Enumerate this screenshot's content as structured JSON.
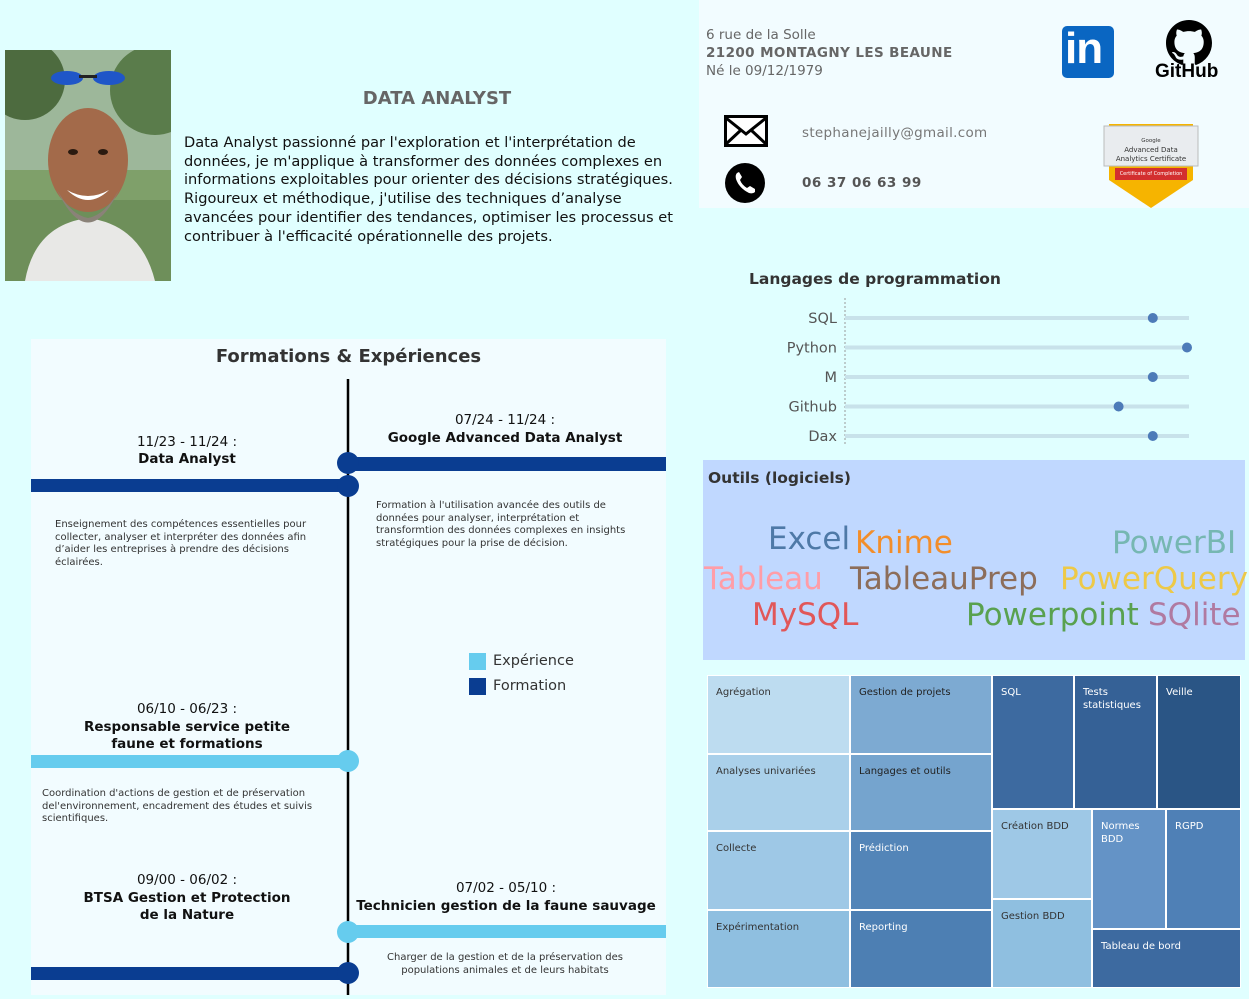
{
  "header": {
    "title": "DATA ANALYST",
    "bio": "Data Analyst passionné par l'exploration et l'interprétation de données, je m'applique à transformer des données complexes en informations exploitables pour orienter des décisions stratégiques. Rigoureux et méthodique, j'utilise des techniques d’analyse avancées pour identifier des tendances, optimiser les processus et contribuer à l'efficacité opérationnelle des projets."
  },
  "contact": {
    "street": "6 rue de la Solle",
    "city": "21200 MONTAGNY LES BEAUNE",
    "birth": "Né le 09/12/1979",
    "email": "stephanejailly@gmail.com",
    "phone": "06 37 06 63 99",
    "linkedin_text": "in",
    "github_text": "GitHub",
    "certificate_lines": [
      "Google",
      "Advanced Data",
      "Analytics Certificate",
      "Certificate of Completion"
    ]
  },
  "languages": {
    "title": "Langages de programmation",
    "chart_data": {
      "type": "scatter",
      "categories": [
        "SQL",
        "Python",
        "M",
        "Github",
        "Dax"
      ],
      "values": [
        9,
        10,
        9,
        8,
        9
      ],
      "xlim": [
        0,
        10
      ],
      "grid": false
    }
  },
  "tools": {
    "title": "Outils (logiciels)",
    "words": [
      {
        "text": "Excel",
        "color": "#4e79a7"
      },
      {
        "text": "Knime",
        "color": "#f28e2b"
      },
      {
        "text": "PowerBI",
        "color": "#76b7b2"
      },
      {
        "text": "Tableau",
        "color": "#ff9da7"
      },
      {
        "text": "TableauPrep",
        "color": "#8c6d5a"
      },
      {
        "text": "PowerQuery",
        "color": "#edc948"
      },
      {
        "text": "MySQL",
        "color": "#e15759"
      },
      {
        "text": "Powerpoint",
        "color": "#59a14f"
      },
      {
        "text": "SQlite",
        "color": "#b07aa1"
      }
    ]
  },
  "skills": [
    "Agrégation",
    "Analyses univariées",
    "Collecte",
    "Expérimentation",
    "Gestion de projets",
    "Langages et outils",
    "Prédiction",
    "Reporting",
    "SQL",
    "Tests statistiques",
    "Veille",
    "Création BDD",
    "Gestion BDD",
    "Normes BDD",
    "RGPD",
    "Tableau de bord"
  ],
  "timeline": {
    "title": "Formations & Expériences",
    "legend": {
      "experience": "Expérience",
      "formation": "Formation",
      "experience_color": "#66ccee",
      "formation_color": "#0a3d91"
    },
    "entries": [
      {
        "dates": "11/23 - 11/24 :",
        "title": "Data Analyst",
        "type": "formation",
        "desc": "Enseignement des compétences essentielles pour collecter, analyser et interpréter des données afin d’aider les entreprises à prendre des décisions éclairées."
      },
      {
        "dates": "07/24 - 11/24 :",
        "title": "Google Advanced Data Analyst",
        "type": "formation",
        "desc": "Formation à l'utilisation avancée des outils de données pour analyser, interprétation et transformtion des données complexes en insights stratégiques pour la prise de décision."
      },
      {
        "dates": "06/10 - 06/23 :",
        "title": "Responsable service petite faune et formations",
        "type": "experience",
        "desc": "Coordination d'actions de gestion et de préservation del'environnement, encadrement des études et suivis scientifiques."
      },
      {
        "dates": "09/00 - 06/02 :",
        "title": "BTSA Gestion et Protection de la Nature",
        "type": "formation",
        "desc": ""
      },
      {
        "dates": "07/02 - 05/10 :",
        "title": "Technicien gestion de la faune sauvage",
        "type": "experience",
        "desc": "Charger de la gestion et de la préservation des populations animales et de leurs habitats"
      }
    ]
  }
}
